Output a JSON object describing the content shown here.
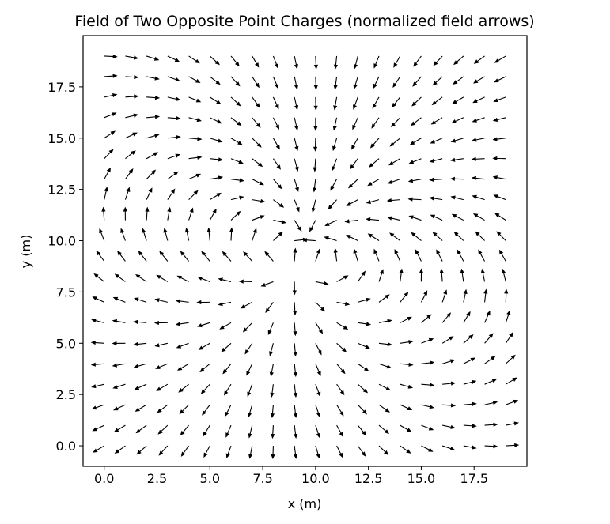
{
  "chart_data": {
    "type": "quiver",
    "title": "Field of Two Opposite Point Charges (normalized field arrows)",
    "xlabel": "x (m)",
    "ylabel": "y (m)",
    "xlim": [
      -1,
      20
    ],
    "ylim": [
      -1,
      20
    ],
    "xticks": [
      "0.0",
      "2.5",
      "5.0",
      "7.5",
      "10.0",
      "12.5",
      "15.0",
      "17.5"
    ],
    "yticks": [
      "0.0",
      "2.5",
      "5.0",
      "7.5",
      "10.0",
      "12.5",
      "15.0",
      "17.5"
    ],
    "grid": false,
    "legend": "none",
    "normalized": true,
    "x_range": [
      0,
      19
    ],
    "y_range": [
      0,
      19
    ],
    "grid_spacing": 1,
    "charges": [
      {
        "sign": "positive",
        "x": 9.0,
        "y": 8.5
      },
      {
        "sign": "negative",
        "x": 9.5,
        "y": 10.0
      }
    ],
    "arrow_color": "#000000"
  }
}
